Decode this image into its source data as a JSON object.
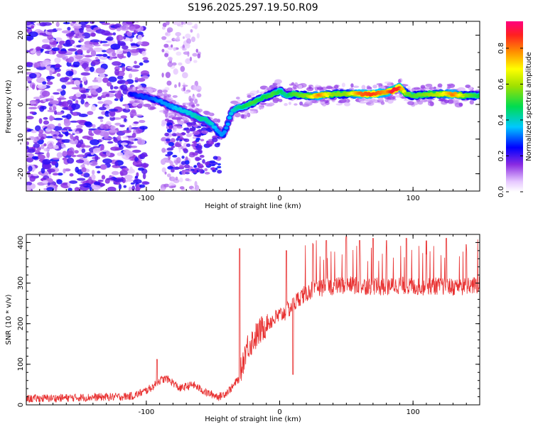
{
  "title": "S196.2025.297.19.50.R09",
  "chart_data": [
    {
      "type": "heatmap",
      "name": "spectrogram",
      "xlabel": "Height of straight line (km)",
      "ylabel": "Frequency (Hz)",
      "xlim": [
        -190,
        150
      ],
      "ylim": [
        -25,
        24
      ],
      "xticks": [
        -100,
        0,
        100
      ],
      "xtick_labels": [
        "-100",
        "0",
        "100"
      ],
      "yticks": [
        -20,
        -10,
        0,
        10,
        20
      ],
      "ytick_labels": [
        "-20",
        "-10",
        "0",
        "10",
        "20"
      ],
      "colorbar": {
        "label": "Normalized spectral amplitude",
        "range": [
          0,
          0.95
        ],
        "ticks": [
          0.0,
          0.2,
          0.4,
          0.6,
          0.8
        ],
        "tick_labels": [
          "0.0",
          "0.2",
          "0.4",
          "0.6",
          "0.8"
        ]
      },
      "ridge": {
        "x": [
          -112,
          -105,
          -98,
          -90,
          -82,
          -75,
          -68,
          -60,
          -55,
          -50,
          -46,
          -43,
          -40,
          -36,
          -32,
          -26,
          -20,
          -12,
          -5,
          0,
          5,
          10,
          20,
          30,
          40,
          50,
          60,
          70,
          80,
          85,
          90,
          95,
          100,
          110,
          120,
          130,
          140,
          150
        ],
        "y": [
          3,
          2.5,
          2,
          1,
          -0.5,
          -1.5,
          -2.5,
          -4,
          -4.5,
          -6,
          -8,
          -9,
          -7,
          -2,
          -1,
          -0.5,
          0.5,
          2,
          3,
          4,
          2.5,
          3,
          2.5,
          2.5,
          3,
          3,
          3,
          3,
          3.5,
          4,
          5,
          3,
          2.5,
          3,
          3,
          3,
          2.5,
          2.5
        ],
        "amp": [
          0.25,
          0.3,
          0.3,
          0.35,
          0.35,
          0.4,
          0.4,
          0.45,
          0.45,
          0.4,
          0.35,
          0.35,
          0.35,
          0.4,
          0.45,
          0.5,
          0.55,
          0.5,
          0.55,
          0.5,
          0.45,
          0.55,
          0.6,
          0.85,
          0.6,
          0.6,
          0.85,
          0.9,
          0.8,
          0.95,
          0.9,
          0.6,
          0.55,
          0.6,
          0.65,
          0.85,
          0.6,
          0.5
        ]
      }
    },
    {
      "type": "line",
      "name": "snr",
      "xlabel": "Height of straight line (km)",
      "ylabel": "SNR (10 * v/v)",
      "xlim": [
        -190,
        150
      ],
      "ylim": [
        0,
        420
      ],
      "xticks": [
        -100,
        0,
        100
      ],
      "xtick_labels": [
        "-100",
        "0",
        "100"
      ],
      "yticks": [
        0,
        100,
        200,
        300,
        400
      ],
      "ytick_labels": [
        "0",
        "100",
        "200",
        "300",
        "400"
      ],
      "series": [
        {
          "name": "SNR",
          "color": "#e83030",
          "x": [
            -190,
            -150,
            -120,
            -110,
            -100,
            -95,
            -90,
            -85,
            -80,
            -75,
            -70,
            -65,
            -60,
            -55,
            -50,
            -45,
            -40,
            -35,
            -32,
            -30,
            -28,
            -25,
            -20,
            -15,
            -10,
            -5,
            0,
            5,
            10,
            15,
            20,
            25,
            30,
            40,
            50,
            60,
            70,
            80,
            90,
            100,
            110,
            120,
            130,
            140,
            150
          ],
          "y": [
            15,
            18,
            20,
            22,
            35,
            45,
            60,
            65,
            55,
            40,
            45,
            50,
            40,
            30,
            25,
            20,
            30,
            45,
            60,
            65,
            100,
            140,
            160,
            180,
            200,
            210,
            220,
            230,
            245,
            265,
            275,
            285,
            288,
            292,
            295,
            293,
            292,
            290,
            295,
            290,
            292,
            293,
            290,
            292,
            295
          ]
        }
      ],
      "spikes": [
        {
          "x": -30,
          "y": 385
        },
        {
          "x": -92,
          "y": 112
        },
        {
          "x": 5,
          "y": 380
        },
        {
          "x": 25,
          "y": 395
        },
        {
          "x": 35,
          "y": 405
        },
        {
          "x": 50,
          "y": 415
        },
        {
          "x": 60,
          "y": 405
        },
        {
          "x": 70,
          "y": 410
        },
        {
          "x": 80,
          "y": 405
        },
        {
          "x": 95,
          "y": 410
        },
        {
          "x": 110,
          "y": 405
        },
        {
          "x": 125,
          "y": 410
        },
        {
          "x": 140,
          "y": 395
        }
      ],
      "dip": {
        "x": 10,
        "y": 75
      }
    }
  ]
}
